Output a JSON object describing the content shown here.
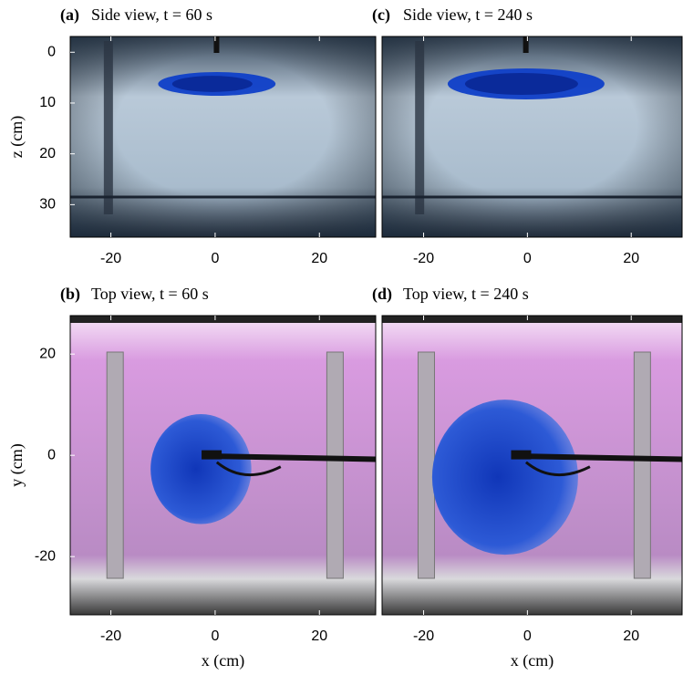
{
  "chart_data": [
    {
      "type": "image",
      "panel_label": "(a)",
      "title": "Side view, t = 60 s",
      "ylabel": "z (cm)",
      "xlim": [
        -27.8,
        30.8
      ],
      "ylim": [
        36.4,
        -3.1
      ],
      "xticks": [
        -20,
        0,
        20
      ],
      "yticks": [
        0,
        10,
        20,
        30
      ]
    },
    {
      "type": "image",
      "panel_label": "(b)",
      "title": "Top view, t = 60 s",
      "xlabel": "x (cm)",
      "ylabel": "y (cm)",
      "xlim": [
        -27.8,
        30.8
      ],
      "ylim": [
        -31.5,
        27.6
      ],
      "xticks": [
        -20,
        0,
        20
      ],
      "yticks": [
        -20,
        0,
        20
      ]
    },
    {
      "type": "image",
      "panel_label": "(c)",
      "title": "Side view, t = 240 s",
      "xlim": [
        -28,
        29.8
      ],
      "ylim": [
        36.4,
        -3.1
      ],
      "xticks": [
        -20,
        0,
        20
      ]
    },
    {
      "type": "image",
      "panel_label": "(d)",
      "title": "Top view, t = 240 s",
      "xlabel": "x (cm)",
      "xlim": [
        -28,
        29.8
      ],
      "ylim": [
        -31.5,
        27.6
      ],
      "xticks": [
        -20,
        0,
        20
      ]
    }
  ]
}
